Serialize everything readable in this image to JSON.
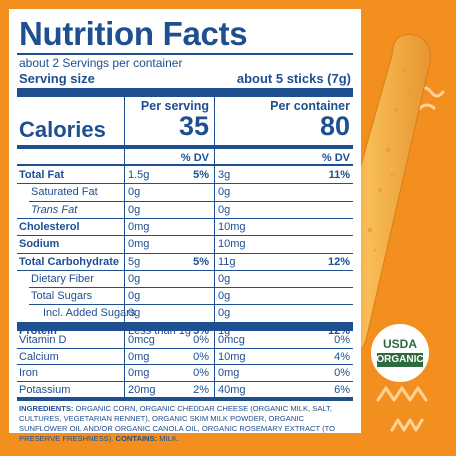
{
  "title": "Nutrition Facts",
  "servings_per_container": "about 2 Servings per container",
  "serving_size": {
    "label": "Serving size",
    "value": "about 5 sticks (7g)"
  },
  "columns": {
    "per_serving": "Per serving",
    "per_container": "Per container",
    "dv": "% DV"
  },
  "calories": {
    "label": "Calories",
    "per_serving": "35",
    "per_container": "80"
  },
  "rows": [
    {
      "name": "Total Fat",
      "bold": true,
      "indent": 0,
      "s_amt": "1.5g",
      "s_dv": "5%",
      "c_amt": "3g",
      "c_dv": "11%"
    },
    {
      "name": "Saturated Fat",
      "bold": false,
      "indent": 1,
      "s_amt": "0g",
      "s_dv": "",
      "c_amt": "0g",
      "c_dv": ""
    },
    {
      "name": "Trans Fat",
      "bold": false,
      "indent": 1,
      "s_amt": "0g",
      "s_dv": "",
      "c_amt": "0g",
      "c_dv": ""
    },
    {
      "name": "Cholesterol",
      "bold": true,
      "indent": 0,
      "s_amt": "0mg",
      "s_dv": "",
      "c_amt": "10mg",
      "c_dv": ""
    },
    {
      "name": "Sodium",
      "bold": true,
      "indent": 0,
      "s_amt": "0mg",
      "s_dv": "",
      "c_amt": "10mg",
      "c_dv": ""
    },
    {
      "name": "Total Carbohydrate",
      "bold": true,
      "indent": 0,
      "s_amt": "5g",
      "s_dv": "5%",
      "c_amt": "11g",
      "c_dv": "12%"
    },
    {
      "name": "Dietary Fiber",
      "bold": false,
      "indent": 1,
      "s_amt": "0g",
      "s_dv": "",
      "c_amt": "0g",
      "c_dv": ""
    },
    {
      "name": "Total Sugars",
      "bold": false,
      "indent": 1,
      "s_amt": "0g",
      "s_dv": "",
      "c_amt": "0g",
      "c_dv": ""
    },
    {
      "name": "Incl. Added Sugars",
      "bold": false,
      "indent": 2,
      "s_amt": "0g",
      "s_dv": "",
      "c_amt": "0g",
      "c_dv": ""
    },
    {
      "name": "Protein",
      "bold": true,
      "indent": 0,
      "s_amt": "Less than 1g",
      "s_dv": "5%",
      "c_amt": "1g",
      "c_dv": "12%"
    }
  ],
  "vitamins": [
    {
      "name": "Vitamin D",
      "s_amt": "0mcg",
      "s_dv": "0%",
      "c_amt": "0mcg",
      "c_dv": "0%"
    },
    {
      "name": "Calcium",
      "s_amt": "0mg",
      "s_dv": "0%",
      "c_amt": "10mg",
      "c_dv": "4%"
    },
    {
      "name": "Iron",
      "s_amt": "0mg",
      "s_dv": "0%",
      "c_amt": "0mg",
      "c_dv": "0%"
    },
    {
      "name": "Potassium",
      "s_amt": "20mg",
      "s_dv": "2%",
      "c_amt": "40mg",
      "c_dv": "6%"
    }
  ],
  "ingredients": {
    "label": "INGREDIENTS:",
    "text": "ORGANIC CORN, ORGANIC CHEDDAR CHEESE (ORGANIC MILK, SALT, CULTURES, VEGETARIAN RENNET), ORGANIC SKIM MILK POWDER, ORGANIC SUNFLOWER OIL AND/OR ORGANIC CANOLA OIL, ORGANIC ROSEMARY EXTRACT (TO PRESERVE FRESHNESS).",
    "contains_label": "CONTAINS:",
    "contains": "MILK."
  },
  "usda_seal": {
    "top": "USDA",
    "bottom": "ORGANIC"
  },
  "colors": {
    "background": "#f28f1e",
    "label_text": "#1d4f91",
    "seal_green": "#2d6a3e",
    "stick": "#f6b24a"
  },
  "icons": [
    "usda-organic-seal",
    "cheese-stick-image",
    "squiggle-decoration"
  ]
}
